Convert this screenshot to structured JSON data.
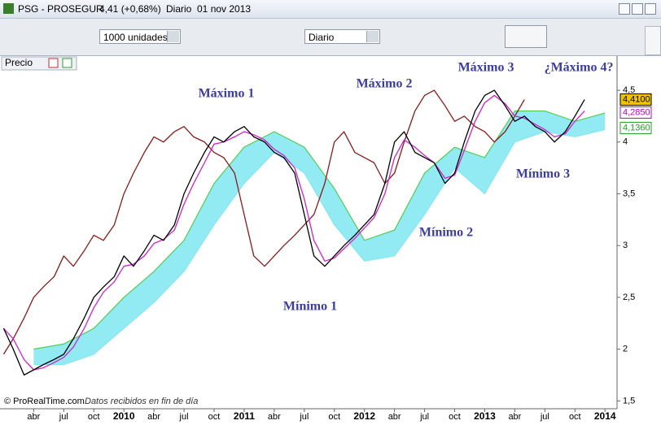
{
  "window": {
    "title": "PSG - PROSEGUR",
    "quote": "4,41 (+0,68%)",
    "period": "Diario  01 nov 2013"
  },
  "toolbar": {
    "quantity": "1000 unidades",
    "interval": "Diario"
  },
  "panel": {
    "label": "Precio"
  },
  "footer": {
    "copyright": "© ProRealTime.com",
    "note": "Datos recibidos en fin de día"
  },
  "chart_data": {
    "type": "line",
    "annotations": [
      "Máximo 1",
      "Máximo 2",
      "Máximo 3",
      "¿Máximo 4?",
      "Mínimo 1",
      "Mínimo 2",
      "Mínimo 3"
    ],
    "x": [
      2009.0,
      2009.08,
      2009.17,
      2009.25,
      2009.33,
      2009.42,
      2009.5,
      2009.58,
      2009.67,
      2009.75,
      2009.83,
      2009.92,
      2010.0,
      2010.08,
      2010.17,
      2010.25,
      2010.33,
      2010.42,
      2010.5,
      2010.58,
      2010.67,
      2010.75,
      2010.83,
      2010.92,
      2011.0,
      2011.08,
      2011.17,
      2011.25,
      2011.33,
      2011.42,
      2011.5,
      2011.58,
      2011.67,
      2011.75,
      2011.83,
      2011.92,
      2012.0,
      2012.08,
      2012.17,
      2012.25,
      2012.33,
      2012.42,
      2012.5,
      2012.58,
      2012.67,
      2012.75,
      2012.83,
      2012.92,
      2013.0,
      2013.08,
      2013.17,
      2013.25,
      2013.33,
      2013.42,
      2013.5,
      2013.58,
      2013.67,
      2013.75,
      2013.83
    ],
    "series": [
      {
        "color": "#8b1a1a",
        "x": [
          2009.0,
          2009.08,
          2009.17,
          2009.25,
          2009.33,
          2009.42,
          2009.5,
          2009.58,
          2009.67,
          2009.75,
          2009.83,
          2009.92,
          2010.0,
          2010.08,
          2010.17,
          2010.25,
          2010.33,
          2010.42,
          2010.5,
          2010.58,
          2010.67,
          2010.75,
          2010.83,
          2010.92,
          2011.0,
          2011.08,
          2011.17,
          2011.25,
          2011.33,
          2011.42,
          2011.5,
          2011.58,
          2011.67,
          2011.75,
          2011.83,
          2011.92,
          2012.0,
          2012.08,
          2012.17,
          2012.25,
          2012.33,
          2012.42,
          2012.5,
          2012.58,
          2012.67,
          2012.75,
          2012.83,
          2012.92,
          2013.0,
          2013.08,
          2013.17,
          2013.25,
          2013.33
        ],
        "values": [
          1.95,
          2.1,
          2.3,
          2.5,
          2.6,
          2.7,
          2.9,
          2.8,
          2.95,
          3.1,
          3.05,
          3.2,
          3.5,
          3.7,
          3.9,
          4.05,
          4.0,
          4.1,
          4.15,
          4.05,
          4.0,
          3.9,
          3.85,
          3.7,
          3.3,
          2.9,
          2.8,
          2.9,
          3.0,
          3.1,
          3.2,
          3.3,
          3.6,
          4.0,
          4.1,
          3.9,
          3.85,
          3.8,
          3.6,
          3.7,
          4.0,
          4.3,
          4.45,
          4.5,
          4.35,
          4.2,
          4.25,
          4.15,
          4.1,
          4.0,
          4.1,
          4.25,
          4.41
        ]
      },
      {
        "color": "#d020d0",
        "values": [
          2.2,
          2.1,
          1.9,
          1.8,
          1.82,
          1.87,
          1.92,
          2.02,
          2.2,
          2.4,
          2.55,
          2.65,
          2.8,
          2.82,
          2.9,
          3.02,
          3.06,
          3.15,
          3.4,
          3.6,
          3.8,
          3.98,
          4.0,
          4.05,
          4.1,
          4.07,
          4.02,
          3.93,
          3.87,
          3.75,
          3.45,
          3.05,
          2.85,
          2.88,
          2.97,
          3.07,
          3.17,
          3.27,
          3.5,
          3.85,
          4.02,
          3.95,
          3.87,
          3.8,
          3.65,
          3.68,
          3.92,
          4.2,
          4.38,
          4.45,
          4.37,
          4.25,
          4.23,
          4.17,
          4.12,
          4.05,
          4.08,
          4.2,
          4.3
        ]
      },
      {
        "color": "#000000",
        "values": [
          2.2,
          2.0,
          1.75,
          1.8,
          1.85,
          1.9,
          1.95,
          2.1,
          2.3,
          2.5,
          2.6,
          2.7,
          2.9,
          2.8,
          2.95,
          3.1,
          3.05,
          3.2,
          3.5,
          3.7,
          3.9,
          4.05,
          4.0,
          4.1,
          4.15,
          4.05,
          4.0,
          3.9,
          3.85,
          3.7,
          3.3,
          2.9,
          2.8,
          2.9,
          3.0,
          3.1,
          3.2,
          3.3,
          3.6,
          4.0,
          4.1,
          3.9,
          3.85,
          3.8,
          3.6,
          3.7,
          4.0,
          4.3,
          4.45,
          4.5,
          4.35,
          4.2,
          4.25,
          4.15,
          4.1,
          4.0,
          4.1,
          4.25,
          4.41
        ]
      }
    ],
    "cloud": {
      "color": "#7fe6f0",
      "edge": "#55cc55",
      "x": [
        2009.25,
        2009.5,
        2009.75,
        2010.0,
        2010.25,
        2010.5,
        2010.75,
        2011.0,
        2011.25,
        2011.5,
        2011.75,
        2012.0,
        2012.25,
        2012.5,
        2012.75,
        2013.0,
        2013.25,
        2013.5,
        2013.75,
        2014.0
      ],
      "upper": [
        2.0,
        2.05,
        2.2,
        2.5,
        2.75,
        3.05,
        3.6,
        3.95,
        4.1,
        3.95,
        3.55,
        3.05,
        3.15,
        3.7,
        3.95,
        3.85,
        4.3,
        4.3,
        4.2,
        4.28
      ],
      "lower": [
        1.85,
        1.85,
        1.95,
        2.2,
        2.45,
        2.75,
        3.2,
        3.6,
        3.9,
        3.7,
        3.2,
        2.85,
        2.9,
        3.3,
        3.75,
        3.5,
        4.0,
        4.1,
        4.05,
        4.12
      ]
    },
    "price_labels": [
      {
        "value": 4.41,
        "label": "4,4100",
        "color": "#000000",
        "background": "#f2c200"
      },
      {
        "value": 4.285,
        "label": "4,2850",
        "color": "#c000c0",
        "background": "#ffffff"
      },
      {
        "value": 4.136,
        "label": "4,1360",
        "color": "#20a020",
        "background": "#ffffff"
      }
    ],
    "xlim": [
      2008.97,
      2014.1
    ],
    "ylim": [
      1.44,
      4.83
    ],
    "xticks": [
      {
        "value": 2009.25,
        "label": "abr"
      },
      {
        "value": 2009.5,
        "label": "jul"
      },
      {
        "value": 2009.75,
        "label": "oct"
      },
      2010,
      {
        "value": 2010.25,
        "label": "abr"
      },
      {
        "value": 2010.5,
        "label": "jul"
      },
      {
        "value": 2010.75,
        "label": "oct"
      },
      2011,
      {
        "value": 2011.25,
        "label": "abr"
      },
      {
        "value": 2011.5,
        "label": "jul"
      },
      {
        "value": 2011.75,
        "label": "oct"
      },
      2012,
      {
        "value": 2012.25,
        "label": "abr"
      },
      {
        "value": 2012.5,
        "label": "jul"
      },
      {
        "value": 2012.75,
        "label": "oct"
      },
      2013,
      {
        "value": 2013.25,
        "label": "abr"
      },
      {
        "value": 2013.5,
        "label": "jul"
      },
      {
        "value": 2013.75,
        "label": "oct"
      },
      2014
    ],
    "yticks": [
      {
        "value": 1.5,
        "label": "1,5"
      },
      2,
      {
        "value": 2.5,
        "label": "2,5"
      },
      3,
      {
        "value": 3.5,
        "label": "3,5"
      },
      4,
      {
        "value": 4.5,
        "label": "4,5"
      }
    ]
  }
}
